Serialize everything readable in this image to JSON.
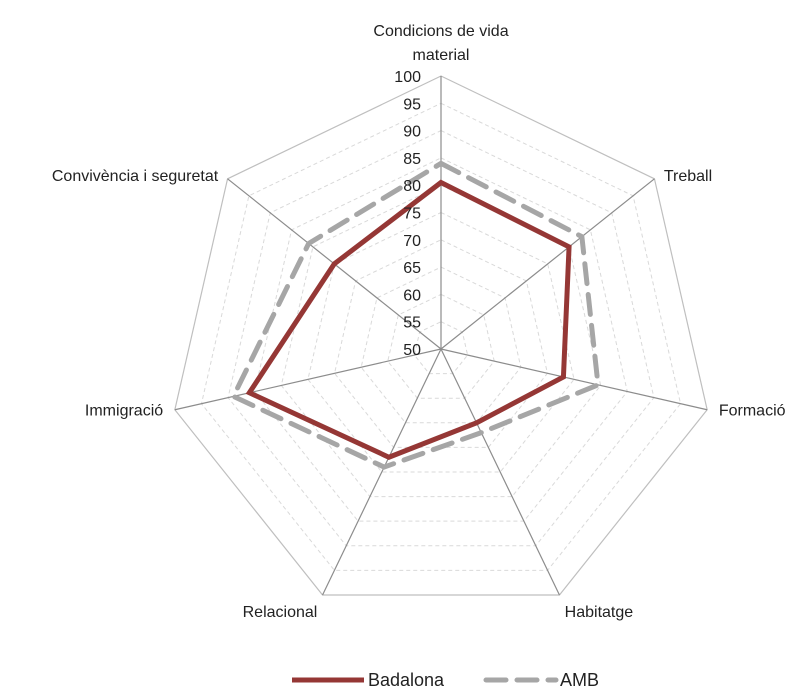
{
  "chart_data": {
    "type": "radar",
    "categories": [
      "Condicions de vida material",
      "Treball",
      "Formació",
      "Habitatge",
      "Relacional",
      "Immigració",
      "Convivència i seguretat"
    ],
    "category_lines": [
      [
        "Condicions de vida",
        "material"
      ],
      [
        "Treball"
      ],
      [
        "Formació"
      ],
      [
        "Habitatge"
      ],
      [
        "Relacional"
      ],
      [
        "Immigració"
      ],
      [
        "Convivència i seguretat"
      ]
    ],
    "rlim": [
      50,
      100
    ],
    "ticks": [
      50,
      55,
      60,
      65,
      70,
      75,
      80,
      85,
      90,
      95,
      100
    ],
    "tick_labels": [
      "50",
      "55",
      "60",
      "65",
      "70",
      "75",
      "80",
      "85",
      "90",
      "95",
      "100"
    ],
    "series": [
      {
        "name": "Badalona",
        "values": [
          80.5,
          80,
          73,
          65,
          72,
          86,
          75
        ],
        "color": "#953735",
        "style": "solid"
      },
      {
        "name": "AMB",
        "values": [
          84,
          83,
          79.5,
          67,
          74,
          89,
          81
        ],
        "color": "#a6a6a6",
        "style": "dashed"
      }
    ],
    "grid": true,
    "legend": "bottom-center"
  }
}
